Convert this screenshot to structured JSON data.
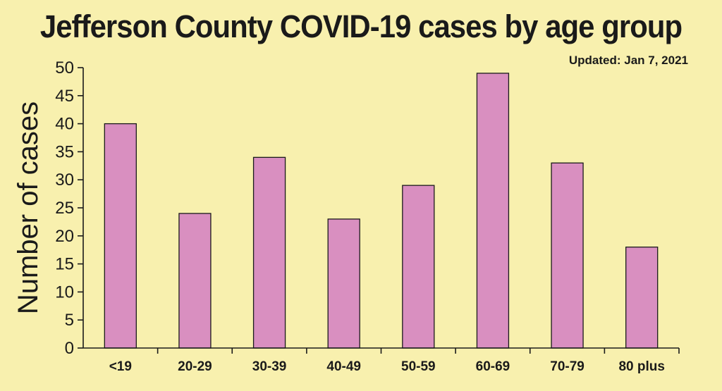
{
  "chart_data": {
    "type": "bar",
    "title": "Jefferson County COVID-19 cases by age group",
    "subtitle": "Updated: Jan 7, 2021",
    "xlabel": "",
    "ylabel": "Number of cases",
    "categories": [
      "<19",
      "20-29",
      "30-39",
      "40-49",
      "50-59",
      "60-69",
      "70-79",
      "80 plus"
    ],
    "values": [
      40,
      24,
      34,
      23,
      29,
      49,
      33,
      18
    ],
    "ylim": [
      0,
      50
    ],
    "yticks": [
      0,
      5,
      10,
      15,
      20,
      25,
      30,
      35,
      40,
      45,
      50
    ],
    "grid": false,
    "bar_color": "#d98fc0",
    "background_color": "#f8f0ae"
  }
}
